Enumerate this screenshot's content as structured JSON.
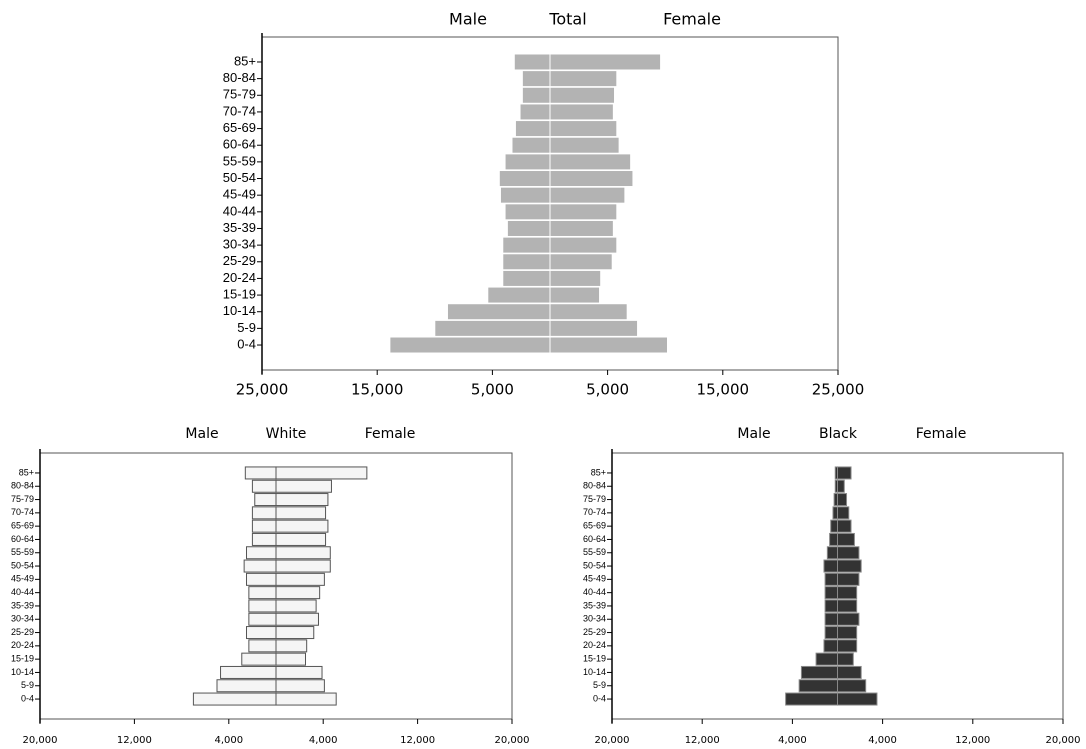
{
  "chart_data": [
    {
      "type": "pyramid",
      "title": "Total",
      "orientation": "horizontal",
      "categories": [
        "85+",
        "80-84",
        "75-79",
        "70-74",
        "65-69",
        "60-64",
        "55-59",
        "50-54",
        "45-49",
        "40-44",
        "35-39",
        "30-34",
        "25-29",
        "20-24",
        "15-19",
        "10-14",
        "5-9",
        "0-4"
      ],
      "series": [
        {
          "name": "Male",
          "color": "#b3b3b3",
          "values": [
            -3100,
            -2400,
            -2400,
            -2600,
            -3000,
            -3300,
            -3900,
            -4400,
            -4300,
            -3900,
            -3700,
            -4100,
            -4100,
            -4100,
            -5400,
            -8900,
            -10000,
            -13900
          ]
        },
        {
          "name": "Female",
          "color": "#b3b3b3",
          "values": [
            9600,
            5800,
            5600,
            5500,
            5800,
            6000,
            7000,
            7200,
            6500,
            5800,
            5500,
            5800,
            5400,
            4400,
            4300,
            6700,
            7600,
            10200
          ]
        }
      ],
      "xlim": [
        -25000,
        25000
      ],
      "xticks": [
        {
          "value": -25000,
          "label": "25,000"
        },
        {
          "value": -15000,
          "label": "15,000"
        },
        {
          "value": -5000,
          "label": "5,000"
        },
        {
          "value": 5000,
          "label": "5,000"
        },
        {
          "value": 15000,
          "label": "15,000"
        },
        {
          "value": 25000,
          "label": "25,000"
        }
      ],
      "bar_stroke": "#ffffff"
    },
    {
      "type": "pyramid",
      "title": "White",
      "orientation": "horizontal",
      "categories": [
        "85+",
        "80-84",
        "75-79",
        "70-74",
        "65-69",
        "60-64",
        "55-59",
        "50-54",
        "45-49",
        "40-44",
        "35-39",
        "30-34",
        "25-29",
        "20-24",
        "15-19",
        "10-14",
        "5-9",
        "0-4"
      ],
      "series": [
        {
          "name": "Male",
          "color": "#f5f5f5",
          "values": [
            -2600,
            -2000,
            -1800,
            -2000,
            -2000,
            -2000,
            -2500,
            -2700,
            -2500,
            -2300,
            -2300,
            -2300,
            -2500,
            -2300,
            -2900,
            -4700,
            -5000,
            -7000
          ]
        },
        {
          "name": "Female",
          "color": "#f5f5f5",
          "values": [
            7700,
            4700,
            4400,
            4200,
            4400,
            4200,
            4600,
            4600,
            4100,
            3700,
            3400,
            3600,
            3200,
            2600,
            2500,
            3900,
            4100,
            5100
          ]
        }
      ],
      "xlim": [
        -20000,
        20000
      ],
      "xticks": [
        {
          "value": -20000,
          "label": "20,000"
        },
        {
          "value": -12000,
          "label": "12,000"
        },
        {
          "value": -4000,
          "label": "4,000"
        },
        {
          "value": 4000,
          "label": "4,000"
        },
        {
          "value": 12000,
          "label": "12,000"
        },
        {
          "value": 20000,
          "label": "20,000"
        }
      ],
      "bar_stroke": "#555555"
    },
    {
      "type": "pyramid",
      "title": "Black",
      "orientation": "horizontal",
      "categories": [
        "85+",
        "80-84",
        "75-79",
        "70-74",
        "65-69",
        "60-64",
        "55-59",
        "50-54",
        "45-49",
        "40-44",
        "35-39",
        "30-34",
        "25-29",
        "20-24",
        "15-19",
        "10-14",
        "5-9",
        "0-4"
      ],
      "series": [
        {
          "name": "Male",
          "color": "#333333",
          "values": [
            -200,
            -200,
            -300,
            -400,
            -600,
            -700,
            -900,
            -1200,
            -1100,
            -1100,
            -1100,
            -1100,
            -1100,
            -1200,
            -1900,
            -3200,
            -3400,
            -4600
          ]
        },
        {
          "name": "Female",
          "color": "#333333",
          "values": [
            1200,
            600,
            800,
            1000,
            1200,
            1500,
            1900,
            2100,
            1900,
            1700,
            1700,
            1900,
            1700,
            1700,
            1400,
            2100,
            2500,
            3500
          ]
        }
      ],
      "xlim": [
        -20000,
        20000
      ],
      "xticks": [
        {
          "value": -20000,
          "label": "20,000"
        },
        {
          "value": -12000,
          "label": "12,000"
        },
        {
          "value": -4000,
          "label": "4,000"
        },
        {
          "value": 4000,
          "label": "4,000"
        },
        {
          "value": 12000,
          "label": "12,000"
        },
        {
          "value": 20000,
          "label": "20,000"
        }
      ],
      "bar_stroke": "#888888"
    }
  ]
}
